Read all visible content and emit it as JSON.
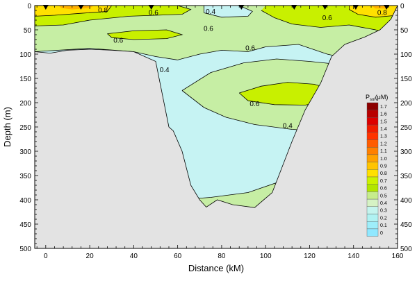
{
  "chart_data": {
    "type": "contour",
    "xlabel": "Distance (kM)",
    "ylabel": "Depth (m)",
    "xlim": [
      -5,
      160
    ],
    "ylim": [
      0,
      500
    ],
    "y_inverted": true,
    "x_ticks": [
      0,
      20,
      40,
      60,
      80,
      100,
      120,
      140,
      160
    ],
    "y_ticks": [
      0,
      50,
      100,
      150,
      200,
      250,
      300,
      350,
      400,
      450,
      500
    ],
    "station_markers_x": [
      0,
      16,
      48,
      89,
      113,
      127,
      141,
      155
    ],
    "contour_labels": [
      {
        "text": "0.8",
        "x": 26,
        "y": 10
      },
      {
        "text": "0.6",
        "x": 49,
        "y": 15
      },
      {
        "text": "0.4",
        "x": 75,
        "y": 13
      },
      {
        "text": "0.6",
        "x": 128,
        "y": 26
      },
      {
        "text": "0.8",
        "x": 153,
        "y": 15
      },
      {
        "text": "0.6",
        "x": 74,
        "y": 48
      },
      {
        "text": "0.6",
        "x": 33,
        "y": 72
      },
      {
        "text": "0.6",
        "x": 93,
        "y": 88
      },
      {
        "text": "0.4",
        "x": 54,
        "y": 133
      },
      {
        "text": "0.6",
        "x": 95,
        "y": 203
      },
      {
        "text": "0.4",
        "x": 110,
        "y": 248
      }
    ],
    "seafloor_profile": [
      {
        "x": -5,
        "depth": 95
      },
      {
        "x": 2,
        "depth": 98
      },
      {
        "x": 10,
        "depth": 92
      },
      {
        "x": 20,
        "depth": 90
      },
      {
        "x": 30,
        "depth": 92
      },
      {
        "x": 40,
        "depth": 95
      },
      {
        "x": 50,
        "depth": 115
      },
      {
        "x": 56,
        "depth": 250
      },
      {
        "x": 58,
        "depth": 258
      },
      {
        "x": 62,
        "depth": 300
      },
      {
        "x": 66,
        "depth": 370
      },
      {
        "x": 70,
        "depth": 400
      },
      {
        "x": 73,
        "depth": 415
      },
      {
        "x": 78,
        "depth": 400
      },
      {
        "x": 85,
        "depth": 410
      },
      {
        "x": 95,
        "depth": 416
      },
      {
        "x": 103,
        "depth": 385
      },
      {
        "x": 106,
        "depth": 350
      },
      {
        "x": 112,
        "depth": 280
      },
      {
        "x": 118,
        "depth": 215
      },
      {
        "x": 125,
        "depth": 160
      },
      {
        "x": 130,
        "depth": 105
      },
      {
        "x": 136,
        "depth": 80
      },
      {
        "x": 145,
        "depth": 65
      },
      {
        "x": 152,
        "depth": 50
      },
      {
        "x": 157,
        "depth": 28
      },
      {
        "x": 160,
        "depth": 0
      }
    ],
    "colorbar": {
      "title_main": "P",
      "title_sub": "sol",
      "title_unit": "(μM)",
      "levels": [
        {
          "value": "1.7",
          "color": "#8c0000"
        },
        {
          "value": "1.6",
          "color": "#b80000"
        },
        {
          "value": "1.5",
          "color": "#dd0000"
        },
        {
          "value": "1.4",
          "color": "#f01c00"
        },
        {
          "value": "1.3",
          "color": "#ff3300"
        },
        {
          "value": "1.2",
          "color": "#ff5c00"
        },
        {
          "value": "1.1",
          "color": "#ff8000"
        },
        {
          "value": "1.0",
          "color": "#ffa200"
        },
        {
          "value": "0.9",
          "color": "#ffc400"
        },
        {
          "value": "0.8",
          "color": "#ffe000"
        },
        {
          "value": "0.7",
          "color": "#ccf200"
        },
        {
          "value": "0.6",
          "color": "#b2e600"
        },
        {
          "value": "0.5",
          "color": "#c6ec8c"
        },
        {
          "value": "0.4",
          "color": "#d6f2c4"
        },
        {
          "value": "0.3",
          "color": "#c4f4ee"
        },
        {
          "value": "0.2",
          "color": "#b0f2f2"
        },
        {
          "value": "0.1",
          "color": "#9eeefa"
        },
        {
          "value": "0",
          "color": "#90e8ff"
        }
      ]
    },
    "colors": {
      "land": "#e3e3e3",
      "low": "#c6f3f3",
      "mid": "#c6eea4",
      "high": "#c8f000",
      "peak": "#ffe000",
      "max": "#ffb000"
    }
  }
}
